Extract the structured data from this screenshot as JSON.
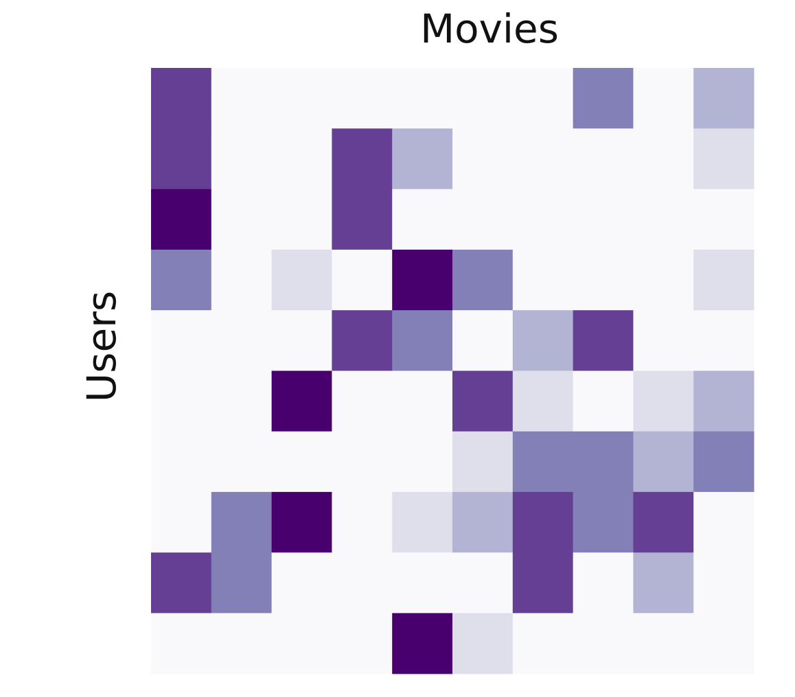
{
  "chart_data": {
    "type": "heatmap",
    "title": "Movies",
    "y_label": "Users",
    "values": [
      [
        4,
        0,
        0,
        0,
        0,
        0,
        0,
        3,
        0,
        2
      ],
      [
        4,
        0,
        0,
        4,
        2,
        0,
        0,
        0,
        0,
        1
      ],
      [
        5,
        0,
        0,
        4,
        0,
        0,
        0,
        0,
        0,
        0
      ],
      [
        3,
        0,
        1,
        0,
        5,
        3,
        0,
        0,
        0,
        1
      ],
      [
        0,
        0,
        0,
        4,
        3,
        0,
        2,
        4,
        0,
        0
      ],
      [
        0,
        0,
        5,
        0,
        0,
        4,
        1,
        0,
        1,
        2
      ],
      [
        0,
        0,
        0,
        0,
        0,
        1,
        3,
        3,
        2,
        3
      ],
      [
        0,
        3,
        5,
        0,
        1,
        2,
        4,
        3,
        4,
        0
      ],
      [
        4,
        3,
        0,
        0,
        0,
        0,
        4,
        0,
        2,
        0
      ],
      [
        0,
        0,
        0,
        0,
        5,
        1,
        0,
        0,
        0,
        0
      ]
    ],
    "colors": [
      "#f9f9fb",
      "#dfdfec",
      "#b3b3d4",
      "#8380b8",
      "#643f94",
      "#48006f"
    ]
  }
}
